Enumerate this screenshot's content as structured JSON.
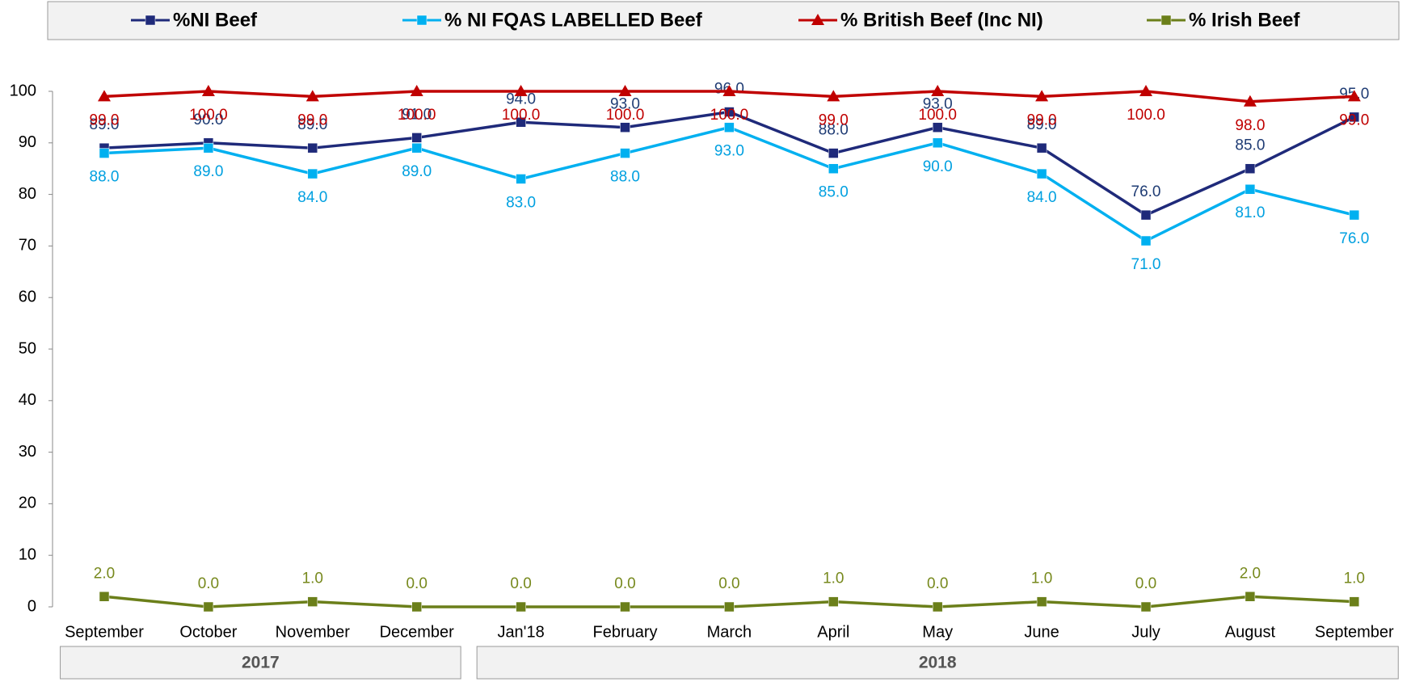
{
  "chart_data": {
    "type": "line",
    "categories": [
      "September",
      "October",
      "November",
      "December",
      "Jan'18",
      "February",
      "March",
      "April",
      "May",
      "June",
      "July",
      "August",
      "September"
    ],
    "category_groups": [
      {
        "name": "2017",
        "first": 0,
        "last": 3
      },
      {
        "name": "2018",
        "first": 4,
        "last": 12
      }
    ],
    "series": [
      {
        "name": "%NI Beef",
        "color": "#1f2a7a",
        "label_color": "#1f3c74",
        "marker": "square",
        "label_position": "above",
        "values": [
          89,
          90,
          89,
          91,
          94,
          93,
          96,
          88,
          93,
          89,
          76,
          85,
          95
        ],
        "value_labels": [
          "89.0",
          "90.0",
          "89.0",
          "91.0",
          "94.0",
          "93.0",
          "96.0",
          "88.0",
          "93.0",
          "89.0",
          "76.0",
          "85.0",
          "95.0"
        ]
      },
      {
        "name": "% NI FQAS LABELLED Beef",
        "color": "#00b0f0",
        "label_color": "#00a0e0",
        "marker": "square",
        "label_position": "below",
        "values": [
          88,
          89,
          84,
          89,
          83,
          88,
          93,
          85,
          90,
          84,
          71,
          81,
          76
        ],
        "value_labels": [
          "88.0",
          "89.0",
          "84.0",
          "89.0",
          "83.0",
          "88.0",
          "93.0",
          "85.0",
          "90.0",
          "84.0",
          "71.0",
          "81.0",
          "76.0"
        ]
      },
      {
        "name": "% British Beef (Inc NI)",
        "color": "#c00000",
        "label_color": "#c00000",
        "marker": "triangle",
        "label_position": "below",
        "values": [
          99,
          100,
          99,
          100,
          100,
          100,
          100,
          99,
          100,
          99,
          100,
          98,
          99
        ],
        "value_labels": [
          "99.0",
          "100.0",
          "99.0",
          "100.0",
          "100.0",
          "100.0",
          "100.0",
          "99.0",
          "100.0",
          "99.0",
          "100.0",
          "98.0",
          "99.0"
        ]
      },
      {
        "name": "% Irish Beef",
        "color": "#6b7f1a",
        "label_color": "#77891d",
        "marker": "square",
        "label_position": "above",
        "values": [
          2,
          0,
          1,
          0,
          0,
          0,
          0,
          1,
          0,
          1,
          0,
          2,
          1
        ],
        "value_labels": [
          "2.0",
          "0.0",
          "1.0",
          "0.0",
          "0.0",
          "0.0",
          "0.0",
          "1.0",
          "0.0",
          "1.0",
          "0.0",
          "2.0",
          "1.0"
        ]
      }
    ],
    "ylim": [
      0,
      100
    ],
    "yticks": [
      0,
      10,
      20,
      30,
      40,
      50,
      60,
      70,
      80,
      90,
      100
    ],
    "grid": false,
    "legend": "top"
  }
}
